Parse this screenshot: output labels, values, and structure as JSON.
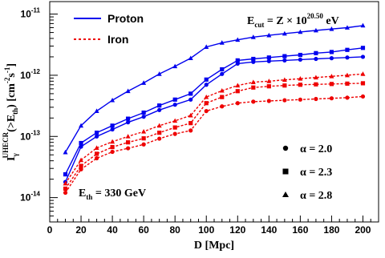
{
  "chart_data": {
    "type": "line",
    "x": [
      10,
      20,
      30,
      40,
      50,
      60,
      70,
      80,
      90,
      100,
      110,
      120,
      130,
      140,
      150,
      160,
      170,
      180,
      190,
      200
    ],
    "xlabel": "D [Mpc]",
    "ylabel_main": "I",
    "ylabel_sub": "γ",
    "ylabel_sup": "UHECR",
    "ylabel_rest_a": "(>E",
    "ylabel_rest_sub": "th",
    "ylabel_rest_b": ") [cm",
    "ylabel_unit_sup1": "-2",
    "ylabel_unit_mid": "s",
    "ylabel_unit_sup2": "-1",
    "ylabel_unit_end": "]",
    "xlim": [
      0,
      210
    ],
    "ylim": [
      4e-15,
      1.6e-11
    ],
    "yscale": "log",
    "xticks": [
      0,
      20,
      40,
      60,
      80,
      100,
      120,
      140,
      160,
      180,
      200
    ],
    "xtick_labels": [
      "0",
      "20",
      "40",
      "60",
      "80",
      "100",
      "120",
      "140",
      "160",
      "180",
      "200"
    ],
    "yticks": [
      1e-14,
      1e-13,
      1e-12,
      1e-11
    ],
    "ytick_labels": [
      {
        "base": "10",
        "exp": "-14"
      },
      {
        "base": "10",
        "exp": "-13"
      },
      {
        "base": "10",
        "exp": "-12"
      },
      {
        "base": "10",
        "exp": "-11"
      }
    ],
    "series": [
      {
        "composition": "Proton",
        "alpha": "2.0",
        "color": "#0000ee",
        "dash": "solid",
        "marker": "circle",
        "values": [
          1.8e-14,
          6.8e-14,
          1e-13,
          1.3e-13,
          1.7e-13,
          2.1e-13,
          2.7e-13,
          3.3e-13,
          4e-13,
          7e-13,
          1.05e-12,
          1.55e-12,
          1.65e-12,
          1.7e-12,
          1.75e-12,
          1.8e-12,
          1.85e-12,
          1.9e-12,
          1.95e-12,
          2e-12
        ]
      },
      {
        "composition": "Proton",
        "alpha": "2.3",
        "color": "#0000ee",
        "dash": "solid",
        "marker": "square",
        "values": [
          2.4e-14,
          7.8e-14,
          1.15e-13,
          1.5e-13,
          1.95e-13,
          2.45e-13,
          3.2e-13,
          4e-13,
          5e-13,
          8.5e-13,
          1.25e-12,
          1.75e-12,
          1.85e-12,
          1.95e-12,
          2.05e-12,
          2.15e-12,
          2.3e-12,
          2.4e-12,
          2.6e-12,
          2.8e-12
        ]
      },
      {
        "composition": "Proton",
        "alpha": "2.8",
        "color": "#0000ee",
        "dash": "solid",
        "marker": "triangle",
        "values": [
          5.5e-14,
          1.5e-13,
          2.6e-13,
          3.9e-13,
          5.5e-13,
          7.5e-13,
          1.05e-12,
          1.4e-12,
          1.9e-12,
          2.9e-12,
          3.4e-12,
          3.8e-12,
          4.2e-12,
          4.5e-12,
          4.8e-12,
          5.1e-12,
          5.4e-12,
          5.7e-12,
          6e-12,
          6.5e-12
        ]
      },
      {
        "composition": "Iron",
        "alpha": "2.0",
        "color": "#ee0000",
        "dash": "dotted",
        "marker": "circle",
        "values": [
          1.2e-14,
          2.9e-14,
          4.4e-14,
          5.6e-14,
          6.4e-14,
          7.4e-14,
          9.2e-14,
          1.1e-13,
          1.25e-13,
          2.6e-13,
          3.1e-13,
          3.5e-13,
          3.7e-13,
          3.8e-13,
          3.9e-13,
          4e-13,
          4.1e-13,
          4.2e-13,
          4.3e-13,
          4.5e-13
        ]
      },
      {
        "composition": "Iron",
        "alpha": "2.3",
        "color": "#ee0000",
        "dash": "dotted",
        "marker": "square",
        "values": [
          1.4e-14,
          3.3e-14,
          5.2e-14,
          6.7e-14,
          8e-14,
          9.3e-14,
          1.15e-13,
          1.4e-13,
          1.65e-13,
          3.5e-13,
          4.4e-13,
          5.5e-13,
          6.3e-13,
          6.6e-13,
          6.8e-13,
          7e-13,
          7.1e-13,
          7.2e-13,
          7.3e-13,
          7.4e-13
        ]
      },
      {
        "composition": "Iron",
        "alpha": "2.8",
        "color": "#ee0000",
        "dash": "dotted",
        "marker": "triangle",
        "values": [
          1.7e-14,
          4.1e-14,
          6.5e-14,
          8.2e-14,
          1e-13,
          1.2e-13,
          1.5e-13,
          1.8e-13,
          2.2e-13,
          4.4e-13,
          5.6e-13,
          6.8e-13,
          7.7e-13,
          8e-13,
          8.4e-13,
          8.8e-13,
          9.2e-13,
          9.6e-13,
          1e-12,
          1.05e-12
        ]
      }
    ],
    "legend_composition": [
      {
        "label": "Proton",
        "color": "#0000ee",
        "dash": "solid"
      },
      {
        "label": "Iron",
        "color": "#ee0000",
        "dash": "dotted"
      }
    ],
    "legend_alpha": [
      {
        "marker": "circle",
        "text": "α = 2.0"
      },
      {
        "marker": "square",
        "text": "α = 2.3"
      },
      {
        "marker": "triangle",
        "text": "α = 2.8"
      }
    ],
    "annotation_ecut": {
      "lhs": "E",
      "lhs_sub": "cut",
      "mid": " = Z × 10",
      "exp": "20.50",
      "unit": " eV"
    },
    "annotation_eth": {
      "lhs": "E",
      "lhs_sub": "th",
      "rhs": " = 330 GeV"
    },
    "grid": false
  }
}
